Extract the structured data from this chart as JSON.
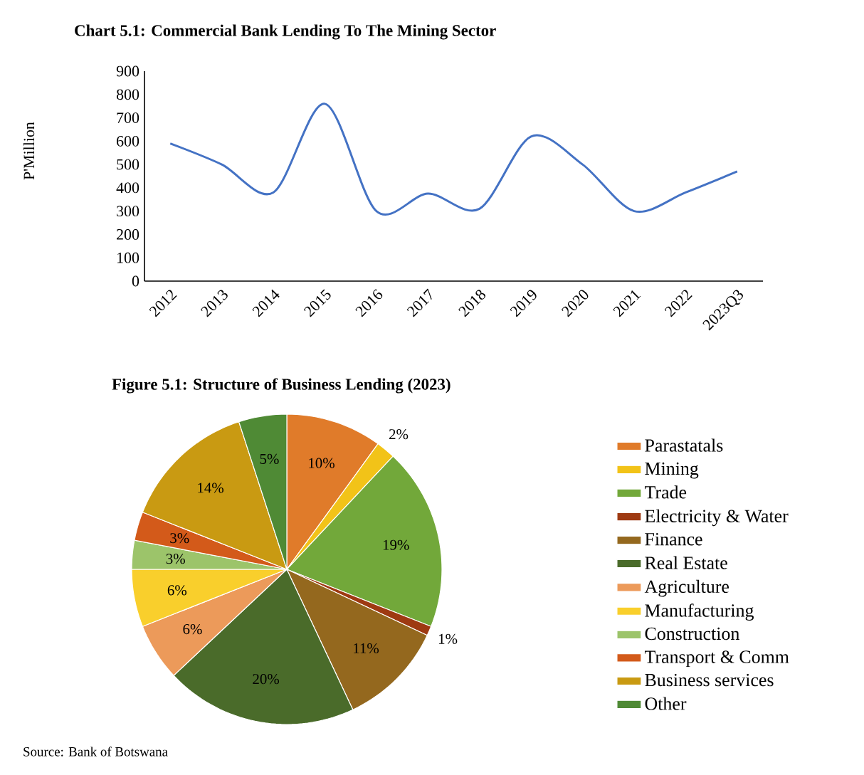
{
  "chart_data": [
    {
      "type": "line",
      "title": "Chart 5.1: Commercial Bank Lending To The Mining Sector",
      "ylabel": "P'Million",
      "categories": [
        "2012",
        "2013",
        "2014",
        "2015",
        "2016",
        "2017",
        "2018",
        "2019",
        "2020",
        "2021",
        "2022",
        "2023Q3"
      ],
      "values": [
        590,
        500,
        380,
        760,
        300,
        375,
        310,
        620,
        500,
        300,
        380,
        470
      ],
      "color": "#4472c4",
      "ylim": [
        0,
        900
      ],
      "yticks": [
        0,
        100,
        200,
        300,
        400,
        500,
        600,
        700,
        800,
        900
      ],
      "grid": false,
      "legend": false,
      "marker": "none",
      "line_style": "solid"
    },
    {
      "type": "pie",
      "title": "Figure 5.1: Structure of Business Lending (2023)",
      "categories": [
        "Parastatals",
        "Mining",
        "Trade",
        "Electricity & Water",
        "Finance",
        "Real Estate",
        "Agriculture",
        "Manufacturing",
        "Construction",
        "Transport & Comm",
        "Business services",
        "Other"
      ],
      "values": [
        10,
        2,
        19,
        1,
        11,
        20,
        6,
        6,
        3,
        3,
        14,
        5
      ],
      "value_labels": [
        "10%",
        "2%",
        "19%",
        "1%",
        "11%",
        "20%",
        "6%",
        "6%",
        "3%",
        "3%",
        "14%",
        "5%"
      ],
      "colors": [
        "#e07b2a",
        "#f2c318",
        "#72a83a",
        "#9e3a12",
        "#94681e",
        "#4a6b2a",
        "#ec9a5a",
        "#f9cf2c",
        "#9cc46a",
        "#d35a1a",
        "#c99a12",
        "#4f8a35"
      ],
      "legend": "right",
      "annotations": [
        "Source: Bank of Botswana"
      ]
    }
  ]
}
